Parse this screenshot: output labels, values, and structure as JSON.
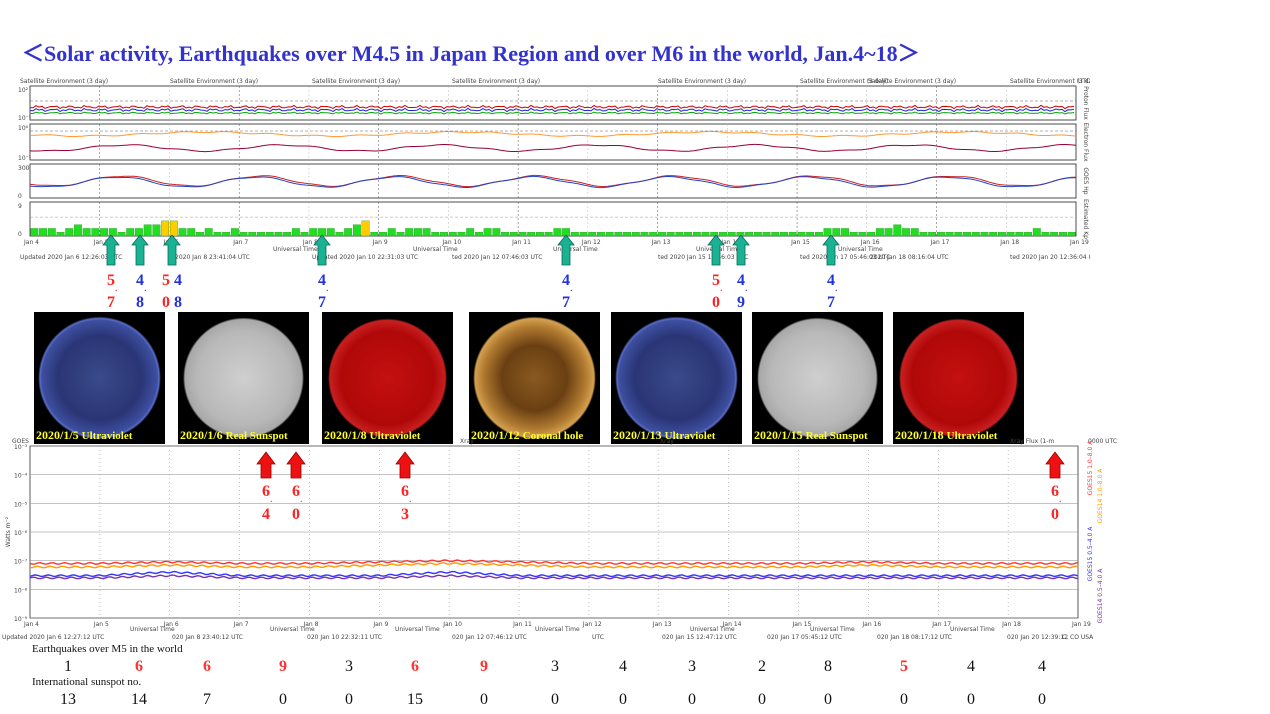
{
  "title": "＜Solar activity, Earthquakes over M4.5 in Japan Region and over M6 in the world,   Jan.4~18＞",
  "top_panel": {
    "panel_title": "Satellite Environment (3 day)",
    "panel_titles": [
      "Satellite Environment (3 day)",
      "Satellite Environment (3 day)",
      "Satellite Environment (3 day)",
      "Satellite Environment (3 day)",
      "Satellite Environment (3 day)",
      "Satellite Environment (3 day)",
      "Satellite Environment (3 day)",
      "Satellite Environment (3 day)"
    ],
    "right_labels": [
      "Proton Flux",
      "Electron Flux",
      "GOES Hp",
      "Estimated Kp"
    ],
    "y_labels": [
      "10²",
      "10⁻¹",
      "10⁶",
      "10⁻¹",
      "300",
      "0",
      "9",
      "0"
    ],
    "date_ticks": [
      "Jan 4",
      "Jan 5",
      "Jan 6",
      "Jan 7",
      "Jan 8",
      "Jan 9",
      "Jan 10",
      "Jan 11",
      "Jan 12",
      "Jan 13",
      "Jan 14",
      "Jan 15",
      "Jan 16",
      "Jan 17",
      "Jan 18",
      "Jan 19"
    ],
    "universal_time": "Universal Time",
    "updated": [
      "Updated 2020 Jan  6 12:26:03 UTC",
      "2020 Jan  8 23:41:04 UTC",
      "Updated 2020 Jan 10 22:31:03 UTC",
      "ted 2020 Jan 12 07:46:03 UTC",
      "ted 2020 Jan 15 12:46:03 UTC",
      "ted 2020 Jan 17 05:46:03 UTC",
      "2020 Jan 18 08:16:04 UTC",
      "ted 2020 Jan 20 12:36:04 UTC"
    ]
  },
  "jp_quake_markers": [
    {
      "top": "5",
      "bottom": "7",
      "color": "red"
    },
    {
      "top": "4",
      "bottom": "8",
      "color": "blue"
    },
    {
      "top": "5",
      "top2": "4",
      "bottom": "0",
      "bottom2": "8",
      "color": "red"
    },
    {
      "top": "4",
      "bottom": "7",
      "color": "blue"
    },
    {
      "top": "4",
      "bottom": "7",
      "color": "blue"
    },
    {
      "top": "5",
      "bottom": "0",
      "color": "red"
    },
    {
      "top": "4",
      "bottom": "9",
      "color": "blue"
    },
    {
      "top": "4",
      "bottom": "7",
      "color": "blue"
    }
  ],
  "sun_images": [
    {
      "date": "2020/1/5",
      "type": "Ultraviolet",
      "style": "uv-blue"
    },
    {
      "date": "2020/1/6",
      "type": "Real Sunspot",
      "style": "white"
    },
    {
      "date": "2020/1/8",
      "type": "Ultraviolet",
      "style": "red"
    },
    {
      "date": "2020/1/12",
      "type": "Coronal hole",
      "style": "orange"
    },
    {
      "date": "2020/1/13",
      "type": "Ultraviolet",
      "style": "uv-blue"
    },
    {
      "date": "2020/1/15",
      "type": "Real Sunspot",
      "style": "white"
    },
    {
      "date": "2020/1/18",
      "type": "Ultraviolet",
      "style": "red"
    }
  ],
  "xray_panel": {
    "header_left": "GOES",
    "header_fragments": [
      "Xray",
      "Xray",
      "Xray Flux (1-m",
      "0000 UTC"
    ],
    "ylabel": "Watts m⁻²",
    "y_ticks": [
      "10⁻³",
      "10⁻⁴",
      "10⁻⁵",
      "10⁻⁶",
      "10⁻⁷",
      "10⁻⁸",
      "10⁻⁹"
    ],
    "right_legend": [
      "GOES15 1.0–8.0 A",
      "GOES14 1.0–8.0 A",
      "GOES15 0.5–4.0 A",
      "GOES14 0.5–4.0 A"
    ],
    "date_ticks": [
      "Jan 4",
      "Jan 5",
      "Jan 6",
      "Jan 7",
      "Jan 8",
      "Jan 9",
      "Jan 10",
      "Jan 11",
      "Jan 12",
      "Jan 13",
      "Jan 14",
      "Jan 15",
      "Jan 16",
      "Jan 17",
      "Jan 18",
      "Jan 19"
    ],
    "universal_time": "Universal Time",
    "updated": [
      "Updated 2020 Jan  6 12:27:12 UTC",
      "020 Jan  8 23:40:12 UTC",
      "020 Jan 10 22:32:11 UTC",
      "020 Jan 12 07:46:12 UTC",
      "UTC",
      "020 Jan 15 12:47:12 UTC",
      "020 Jan 17 05:45:12 UTC",
      "020 Jan 18 08:17:12 UTC",
      "020 Jan 20 12:39:12",
      "C, CO USA"
    ]
  },
  "world_quake_markers": [
    {
      "top": "6",
      "bottom": "4"
    },
    {
      "top": "6",
      "bottom": "0"
    },
    {
      "top": "6",
      "bottom": "3"
    },
    {
      "top": "6",
      "bottom": "0"
    }
  ],
  "table": {
    "row1_label": "Earthquakes over M5 in the world",
    "row2_label": "International sunspot no.",
    "quakes": [
      {
        "v": "1",
        "red": false
      },
      {
        "v": "6",
        "red": true
      },
      {
        "v": "6",
        "red": true
      },
      {
        "v": "9",
        "red": true
      },
      {
        "v": "3",
        "red": false
      },
      {
        "v": "6",
        "red": true
      },
      {
        "v": "9",
        "red": true
      },
      {
        "v": "3",
        "red": false
      },
      {
        "v": "4",
        "red": false
      },
      {
        "v": "3",
        "red": false
      },
      {
        "v": "2",
        "red": false
      },
      {
        "v": "8",
        "red": false
      },
      {
        "v": "5",
        "red": true
      },
      {
        "v": "4",
        "red": false
      },
      {
        "v": "4",
        "red": false
      }
    ],
    "sunspots": [
      "13",
      "14",
      "7",
      "0",
      "0",
      "15",
      "0",
      "0",
      "0",
      "0",
      "0",
      "0",
      "0",
      "0",
      "0"
    ]
  },
  "chart_data": [
    {
      "type": "bar",
      "title": "",
      "ylabel": "Estimated Kp",
      "x": [
        "Jan 4",
        "Jan 5",
        "Jan 6",
        "Jan 7",
        "Jan 8",
        "Jan 9",
        "Jan 10",
        "Jan 11",
        "Jan 12",
        "Jan 13",
        "Jan 14",
        "Jan 15",
        "Jan 16",
        "Jan 17",
        "Jan 18"
      ],
      "values_per_day": [
        [
          2,
          2,
          2,
          1,
          2,
          3,
          2,
          2
        ],
        [
          2,
          2,
          1,
          2,
          2,
          3,
          3,
          4
        ],
        [
          4,
          2,
          2,
          1,
          2,
          1,
          1,
          2
        ],
        [
          1,
          1,
          1,
          1,
          1,
          1,
          2,
          1
        ],
        [
          2,
          2,
          2,
          1,
          2,
          3,
          4,
          1
        ],
        [
          1,
          2,
          1,
          2,
          2,
          2,
          1,
          1
        ],
        [
          1,
          1,
          2,
          1,
          2,
          2,
          1,
          1
        ],
        [
          1,
          1,
          1,
          1,
          2,
          2,
          1,
          1
        ],
        [
          1,
          1,
          1,
          1,
          1,
          1,
          1,
          1
        ],
        [
          1,
          1,
          1,
          1,
          1,
          1,
          1,
          1
        ],
        [
          1,
          1,
          1,
          1,
          1,
          1,
          1,
          1
        ],
        [
          1,
          1,
          1,
          2,
          2,
          2,
          1,
          1
        ],
        [
          1,
          2,
          2,
          3,
          2,
          2,
          1,
          1
        ],
        [
          1,
          1,
          1,
          1,
          1,
          1,
          1,
          1
        ],
        [
          1,
          1,
          1,
          2,
          1,
          1,
          1,
          1
        ]
      ],
      "yellow_threshold": 4,
      "ylim": [
        0,
        9
      ]
    },
    {
      "type": "line",
      "title": "",
      "ylabel": "Watts m⁻²",
      "yscale": "log",
      "ylim": [
        1e-09,
        0.001
      ],
      "x": [
        "Jan 4",
        "Jan 5",
        "Jan 6",
        "Jan 7",
        "Jan 8",
        "Jan 9",
        "Jan 10",
        "Jan 11",
        "Jan 12",
        "Jan 13",
        "Jan 14",
        "Jan 15",
        "Jan 16",
        "Jan 17",
        "Jan 18",
        "Jan 19"
      ],
      "series": [
        {
          "name": "GOES15 1.0–8.0 A",
          "color": "#ff3333",
          "values": [
            8e-08,
            8e-08,
            9e-08,
            8e-08,
            8e-08,
            9e-08,
            1e-07,
            9e-08,
            8e-08,
            8e-08,
            8e-08,
            8e-08,
            9e-08,
            8e-08,
            8e-08,
            8e-08
          ]
        },
        {
          "name": "GOES14 1.0–8.0 A",
          "color": "#ff9900",
          "values": [
            6e-08,
            6e-08,
            7e-08,
            6e-08,
            6e-08,
            7e-08,
            8e-08,
            7e-08,
            6e-08,
            6e-08,
            6e-08,
            6e-08,
            7e-08,
            6e-08,
            6e-08,
            6e-08
          ]
        },
        {
          "name": "GOES15 0.5–4.0 A",
          "color": "#3333ff",
          "values": [
            3e-08,
            3e-08,
            4e-08,
            3e-08,
            3e-08,
            3e-08,
            4e-08,
            3e-08,
            3e-08,
            3e-08,
            3e-08,
            3e-08,
            3e-08,
            3e-08,
            3e-08,
            3e-08
          ]
        },
        {
          "name": "GOES14 0.5–4.0 A",
          "color": "#7733aa",
          "values": [
            2.5e-08,
            2.5e-08,
            3e-08,
            2.5e-08,
            2.5e-08,
            2.5e-08,
            3e-08,
            2.5e-08,
            2.5e-08,
            2.5e-08,
            2.5e-08,
            2.5e-08,
            2.5e-08,
            2.5e-08,
            2.5e-08,
            2.5e-08
          ]
        }
      ]
    }
  ]
}
